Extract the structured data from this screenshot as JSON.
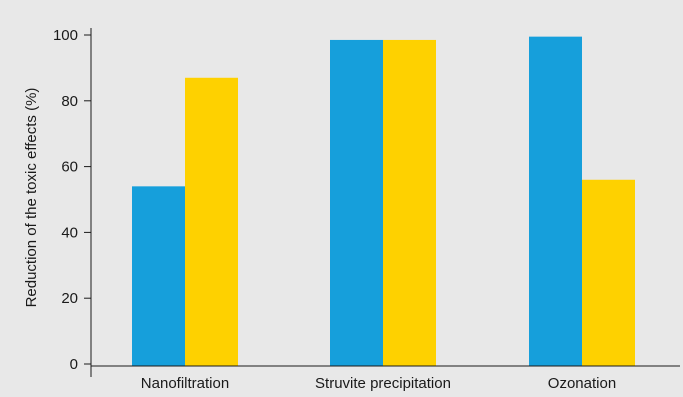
{
  "chart_data": {
    "type": "bar",
    "title": "",
    "xlabel": "",
    "ylabel": "Reduction of the toxic effects (%)",
    "categories": [
      "Nanofiltration",
      "Struvite precipitation",
      "Ozonation"
    ],
    "series": [
      {
        "values": [
          54,
          98.5,
          99.5
        ],
        "color": "#169fdb"
      },
      {
        "values": [
          87,
          98.5,
          56
        ],
        "color": "#fed100"
      }
    ],
    "ylim": [
      0,
      100
    ],
    "yticks": [
      0,
      20,
      40,
      60,
      80,
      100
    ],
    "grid": false,
    "legend": "none"
  },
  "colors": {
    "background": "#e8e8e8",
    "axis": "#1a1a1a"
  }
}
